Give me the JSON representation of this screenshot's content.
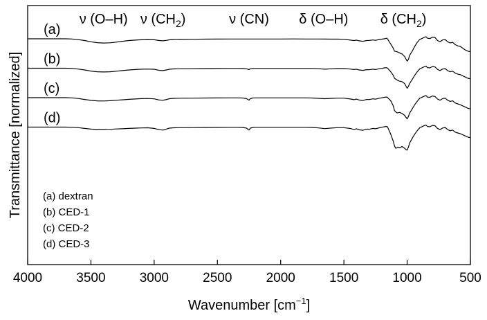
{
  "chart_data": {
    "type": "line",
    "xlabel": "Wavenumber [cm",
    "xlabel_superscript": "−1",
    "xlabel_suffix": "]",
    "ylabel": "Transmittance [normalized]",
    "xlim": [
      4000,
      500
    ],
    "x_axis_reversed": true,
    "xticks": [
      4000,
      3500,
      3000,
      2500,
      2000,
      1500,
      1000,
      500
    ],
    "xtick_labels": [
      "4000",
      "3500",
      "3000",
      "2500",
      "2000",
      "1500",
      "1000",
      "500"
    ],
    "y_ticks_shown": false,
    "grid": false,
    "band_annotations": [
      {
        "symbol": "ν",
        "group": "(O–H)",
        "sub": "",
        "after": "",
        "x": 3400
      },
      {
        "symbol": "ν",
        "group": "(CH",
        "sub": "2",
        "after": ")",
        "x": 2930
      },
      {
        "symbol": "ν",
        "group": "(CN)",
        "sub": "",
        "after": "",
        "x": 2250
      },
      {
        "symbol": "δ",
        "group": "(O–H)",
        "sub": "",
        "after": "",
        "x": 1660
      },
      {
        "symbol": "δ",
        "group": "(CH",
        "sub": "2",
        "after": ")",
        "x": 1030
      }
    ],
    "legend": {
      "placement": "bottom-left",
      "entries": [
        "(a) dextran",
        "(b) CED-1",
        "(c) CED-2",
        "(d) CED-3"
      ]
    },
    "series": [
      {
        "name": "(a)",
        "curve_label": "(a)",
        "baseline": 1.0,
        "x": [
          3700,
          3650,
          3600,
          3550,
          3500,
          3450,
          3400,
          3350,
          3300,
          3250,
          3200,
          3150,
          3100,
          3050,
          3000,
          2960,
          2930,
          2900,
          2880,
          2850,
          2800,
          2700,
          2600,
          2500,
          2400,
          2340,
          2300,
          2250,
          2200,
          2100,
          2000,
          1900,
          1800,
          1750,
          1700,
          1650,
          1600,
          1550,
          1500,
          1450,
          1420,
          1400,
          1380,
          1350,
          1320,
          1300,
          1270,
          1250,
          1220,
          1200,
          1180,
          1160,
          1150,
          1130,
          1110,
          1100,
          1080,
          1060,
          1040,
          1020,
          1010,
          1000,
          990,
          980,
          960,
          940,
          920,
          900,
          880,
          860,
          850,
          840,
          820,
          800,
          780,
          760,
          740,
          720,
          700,
          680,
          660,
          640,
          620,
          600,
          580,
          560,
          540,
          520,
          500
        ],
        "y": [
          0.0,
          -0.04,
          -0.14,
          -0.3,
          -0.5,
          -0.66,
          -0.72,
          -0.68,
          -0.56,
          -0.42,
          -0.3,
          -0.22,
          -0.16,
          -0.13,
          -0.16,
          -0.3,
          -0.34,
          -0.26,
          -0.18,
          -0.12,
          -0.1,
          -0.08,
          -0.06,
          -0.05,
          -0.04,
          -0.04,
          -0.04,
          -0.04,
          -0.03,
          -0.03,
          -0.03,
          -0.02,
          -0.03,
          -0.03,
          -0.04,
          -0.05,
          -0.06,
          -0.06,
          -0.08,
          -0.22,
          -0.3,
          -0.22,
          -0.34,
          -0.42,
          -0.3,
          -0.28,
          -0.2,
          -0.26,
          -0.12,
          -0.06,
          0.0,
          0.1,
          -0.2,
          -0.9,
          -1.6,
          -2.1,
          -2.2,
          -2.4,
          -2.6,
          -3.0,
          -3.4,
          -3.8,
          -3.5,
          -2.8,
          -2.1,
          -1.3,
          -0.6,
          -0.1,
          0.08,
          0.3,
          0.34,
          0.1,
          0.04,
          0.28,
          0.22,
          -0.3,
          -0.5,
          -0.2,
          -0.1,
          -0.5,
          -0.7,
          -0.6,
          -1.0,
          -1.2,
          -1.3,
          -1.6,
          -1.9,
          -2.1,
          -2.2
        ]
      },
      {
        "name": "(b)",
        "curve_label": "(b)",
        "baseline": 0.0,
        "x": [
          3700,
          3650,
          3600,
          3550,
          3500,
          3450,
          3400,
          3350,
          3300,
          3250,
          3200,
          3150,
          3100,
          3050,
          3000,
          2960,
          2930,
          2900,
          2880,
          2850,
          2800,
          2700,
          2600,
          2500,
          2400,
          2340,
          2300,
          2270,
          2250,
          2240,
          2220,
          2200,
          2100,
          2000,
          1900,
          1800,
          1750,
          1700,
          1650,
          1600,
          1550,
          1500,
          1450,
          1420,
          1400,
          1380,
          1350,
          1320,
          1300,
          1270,
          1250,
          1220,
          1200,
          1180,
          1160,
          1150,
          1130,
          1110,
          1100,
          1080,
          1060,
          1040,
          1020,
          1010,
          1000,
          990,
          980,
          960,
          940,
          920,
          900,
          880,
          860,
          850,
          840,
          820,
          800,
          780,
          760,
          740,
          720,
          700,
          680,
          660,
          640,
          620,
          600,
          580,
          560,
          540,
          520,
          500
        ],
        "y": [
          0.0,
          -0.04,
          -0.14,
          -0.3,
          -0.48,
          -0.6,
          -0.64,
          -0.6,
          -0.5,
          -0.4,
          -0.3,
          -0.22,
          -0.16,
          -0.14,
          -0.18,
          -0.36,
          -0.4,
          -0.28,
          -0.18,
          -0.12,
          -0.1,
          -0.08,
          -0.06,
          -0.05,
          -0.04,
          -0.04,
          -0.05,
          -0.1,
          -0.24,
          -0.1,
          -0.04,
          -0.04,
          -0.03,
          -0.03,
          -0.03,
          -0.03,
          -0.04,
          -0.08,
          -0.16,
          -0.1,
          -0.06,
          -0.06,
          -0.14,
          -0.22,
          -0.16,
          -0.3,
          -0.36,
          -0.24,
          -0.26,
          -0.16,
          -0.22,
          -0.08,
          -0.02,
          0.06,
          0.1,
          -0.1,
          -0.6,
          -1.2,
          -1.7,
          -2.0,
          -2.2,
          -2.3,
          -2.6,
          -3.0,
          -3.4,
          -3.1,
          -2.6,
          -1.9,
          -1.2,
          -0.6,
          -0.1,
          0.1,
          0.3,
          0.34,
          0.1,
          0.06,
          0.28,
          0.22,
          -0.2,
          -0.4,
          -0.14,
          -0.06,
          -0.4,
          -0.6,
          -0.5,
          -0.84,
          -1.0,
          -1.1,
          -1.3,
          -1.5,
          -1.7,
          -1.8
        ]
      },
      {
        "name": "(c)",
        "curve_label": "(c)",
        "baseline": -1.0,
        "x": [
          3700,
          3650,
          3600,
          3550,
          3500,
          3450,
          3400,
          3350,
          3300,
          3250,
          3200,
          3150,
          3100,
          3050,
          3000,
          2960,
          2930,
          2900,
          2880,
          2850,
          2800,
          2700,
          2600,
          2500,
          2400,
          2340,
          2300,
          2270,
          2250,
          2240,
          2220,
          2200,
          2100,
          2000,
          1900,
          1800,
          1750,
          1700,
          1650,
          1600,
          1550,
          1500,
          1450,
          1420,
          1400,
          1380,
          1350,
          1320,
          1300,
          1270,
          1250,
          1220,
          1200,
          1180,
          1160,
          1150,
          1130,
          1110,
          1100,
          1080,
          1060,
          1040,
          1020,
          1010,
          1000,
          990,
          980,
          960,
          940,
          920,
          900,
          880,
          860,
          850,
          840,
          820,
          800,
          780,
          760,
          740,
          720,
          700,
          680,
          660,
          640,
          620,
          600,
          580,
          560,
          540,
          520,
          500
        ],
        "y": [
          0.0,
          -0.04,
          -0.14,
          -0.3,
          -0.46,
          -0.54,
          -0.56,
          -0.52,
          -0.44,
          -0.36,
          -0.28,
          -0.22,
          -0.16,
          -0.14,
          -0.2,
          -0.4,
          -0.44,
          -0.3,
          -0.18,
          -0.12,
          -0.1,
          -0.08,
          -0.06,
          -0.05,
          -0.04,
          -0.04,
          -0.06,
          -0.16,
          -0.42,
          -0.16,
          -0.06,
          -0.04,
          -0.04,
          -0.03,
          -0.03,
          -0.04,
          -0.06,
          -0.12,
          -0.18,
          -0.12,
          -0.08,
          -0.08,
          -0.22,
          -0.34,
          -0.24,
          -0.4,
          -0.48,
          -0.3,
          -0.32,
          -0.2,
          -0.26,
          -0.1,
          -0.02,
          0.06,
          0.12,
          -0.1,
          -0.5,
          -1.4,
          -2.2,
          -2.6,
          -2.5,
          -2.7,
          -3.0,
          -3.3,
          -3.6,
          -3.2,
          -2.6,
          -1.9,
          -1.2,
          -0.6,
          -0.1,
          0.1,
          0.3,
          0.34,
          0.1,
          0.06,
          0.28,
          0.2,
          -0.24,
          -0.44,
          -0.16,
          -0.08,
          -0.44,
          -0.64,
          -0.54,
          -0.9,
          -1.06,
          -1.2,
          -1.4,
          -1.6,
          -1.8,
          -1.9
        ]
      },
      {
        "name": "(d)",
        "curve_label": "(d)",
        "baseline": -2.0,
        "x": [
          3700,
          3650,
          3600,
          3550,
          3500,
          3450,
          3400,
          3350,
          3300,
          3250,
          3200,
          3150,
          3100,
          3050,
          3000,
          2960,
          2930,
          2900,
          2880,
          2850,
          2800,
          2700,
          2600,
          2500,
          2400,
          2340,
          2300,
          2270,
          2250,
          2240,
          2220,
          2200,
          2100,
          2000,
          1900,
          1800,
          1750,
          1700,
          1650,
          1600,
          1550,
          1500,
          1450,
          1420,
          1400,
          1380,
          1350,
          1320,
          1300,
          1270,
          1250,
          1220,
          1200,
          1180,
          1160,
          1150,
          1130,
          1110,
          1100,
          1090,
          1080,
          1070,
          1060,
          1040,
          1020,
          1010,
          1000,
          990,
          980,
          960,
          940,
          920,
          900,
          880,
          860,
          850,
          840,
          820,
          800,
          780,
          760,
          740,
          720,
          700,
          680,
          660,
          640,
          620,
          600,
          580,
          560,
          540,
          520,
          500
        ],
        "y": [
          0.0,
          -0.04,
          -0.1,
          -0.22,
          -0.34,
          -0.4,
          -0.4,
          -0.38,
          -0.32,
          -0.28,
          -0.22,
          -0.18,
          -0.14,
          -0.12,
          -0.22,
          -0.44,
          -0.5,
          -0.32,
          -0.18,
          -0.12,
          -0.1,
          -0.08,
          -0.06,
          -0.05,
          -0.04,
          -0.04,
          -0.06,
          -0.18,
          -0.5,
          -0.18,
          -0.06,
          -0.04,
          -0.04,
          -0.03,
          -0.03,
          -0.04,
          -0.06,
          -0.14,
          -0.26,
          -0.16,
          -0.1,
          -0.1,
          -0.24,
          -0.4,
          -0.28,
          -0.46,
          -0.54,
          -0.34,
          -0.36,
          -0.22,
          -0.28,
          -0.12,
          -0.02,
          0.06,
          0.12,
          -0.2,
          -1.2,
          -2.4,
          -3.2,
          -3.6,
          -3.5,
          -3.4,
          -3.5,
          -3.3,
          -3.6,
          -3.8,
          -3.9,
          -3.4,
          -2.7,
          -1.9,
          -1.2,
          -0.6,
          -0.1,
          0.1,
          0.3,
          0.34,
          0.1,
          0.06,
          0.28,
          0.22,
          -0.22,
          -0.42,
          -0.16,
          -0.06,
          -0.42,
          -0.62,
          -0.5,
          -0.86,
          -1.0,
          -1.12,
          -1.3,
          -1.5,
          -1.7,
          -1.8
        ]
      }
    ]
  }
}
